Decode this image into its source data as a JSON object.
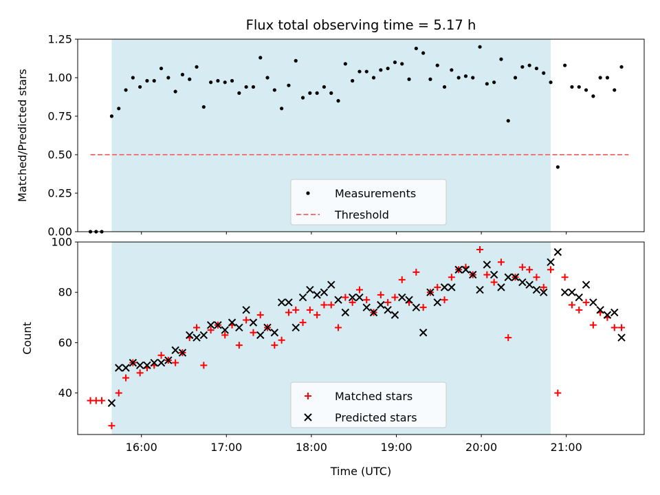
{
  "chart_data": [
    {
      "type": "scatter",
      "title": "Flux total observing time = 5.17 h",
      "xlabel": "",
      "ylabel": "Matched/Predicted stars",
      "xlim": [
        "15:15",
        "21:55"
      ],
      "ylim": [
        0,
        1.25
      ],
      "yticks": [
        "0.00",
        "0.25",
        "0.50",
        "0.75",
        "1.00",
        "1.25"
      ],
      "shaded_region": [
        "15:39",
        "20:49"
      ],
      "threshold": {
        "name": "Threshold",
        "value": 0.5,
        "x": [
          "15:24",
          "21:44"
        ],
        "color": "#f07575"
      },
      "legend": {
        "loc": "lower center",
        "entries": [
          "Measurements",
          "Threshold"
        ]
      },
      "series": [
        {
          "name": "Measurements",
          "marker": "dot",
          "color": "#000000",
          "x": [
            "15:24",
            "15:28",
            "15:32",
            "15:39",
            "15:44",
            "15:49",
            "15:54",
            "15:59",
            "16:04",
            "16:09",
            "16:14",
            "16:19",
            "16:24",
            "16:29",
            "16:34",
            "16:39",
            "16:44",
            "16:49",
            "16:54",
            "16:59",
            "17:04",
            "17:09",
            "17:14",
            "17:19",
            "17:24",
            "17:29",
            "17:34",
            "17:39",
            "17:44",
            "17:49",
            "17:54",
            "17:59",
            "18:04",
            "18:09",
            "18:14",
            "18:19",
            "18:24",
            "18:29",
            "18:34",
            "18:39",
            "18:44",
            "18:49",
            "18:54",
            "18:59",
            "19:04",
            "19:09",
            "19:14",
            "19:19",
            "19:24",
            "19:29",
            "19:34",
            "19:39",
            "19:44",
            "19:49",
            "19:54",
            "19:59",
            "20:04",
            "20:09",
            "20:14",
            "20:19",
            "20:24",
            "20:29",
            "20:34",
            "20:39",
            "20:44",
            "20:49",
            "20:54",
            "20:59",
            "21:04",
            "21:09",
            "21:14",
            "21:19",
            "21:24",
            "21:29",
            "21:34",
            "21:39"
          ],
          "y": [
            0.0,
            0.0,
            0.0,
            0.75,
            0.8,
            0.92,
            1.0,
            0.94,
            0.98,
            0.98,
            1.06,
            1.0,
            0.91,
            1.02,
            0.99,
            1.07,
            0.81,
            0.97,
            0.98,
            0.97,
            0.98,
            0.9,
            0.94,
            0.94,
            1.13,
            1.0,
            0.92,
            0.8,
            0.95,
            1.11,
            0.87,
            0.9,
            0.9,
            0.94,
            0.9,
            0.85,
            1.09,
            0.98,
            1.04,
            1.04,
            1.0,
            1.05,
            1.06,
            1.1,
            1.09,
            0.99,
            1.19,
            1.16,
            0.99,
            1.08,
            0.94,
            1.05,
            1.0,
            1.01,
            1.0,
            1.2,
            0.96,
            0.97,
            1.12,
            0.72,
            1.0,
            1.07,
            1.08,
            1.06,
            1.03,
            0.97,
            0.42,
            1.08,
            0.94,
            0.94,
            0.92,
            0.88,
            1.0,
            1.0,
            0.92,
            1.07
          ]
        }
      ]
    },
    {
      "type": "scatter",
      "title": "",
      "xlabel": "Time (UTC)",
      "ylabel": "Count",
      "xlim": [
        "15:15",
        "21:55"
      ],
      "ylim": [
        23.5,
        100
      ],
      "xticks": [
        "16:00",
        "17:00",
        "18:00",
        "19:00",
        "20:00",
        "21:00"
      ],
      "yticks": [
        "40",
        "60",
        "80",
        "100"
      ],
      "shaded_region": [
        "15:39",
        "20:49"
      ],
      "legend": {
        "loc": "lower center",
        "entries": [
          "Matched stars",
          "Predicted stars"
        ]
      },
      "series": [
        {
          "name": "Matched stars",
          "marker": "plus",
          "color": "#ff0000",
          "x": [
            "15:24",
            "15:28",
            "15:32",
            "15:39",
            "15:44",
            "15:49",
            "15:54",
            "15:59",
            "16:04",
            "16:09",
            "16:14",
            "16:19",
            "16:24",
            "16:29",
            "16:34",
            "16:39",
            "16:44",
            "16:49",
            "16:54",
            "16:59",
            "17:04",
            "17:09",
            "17:14",
            "17:19",
            "17:24",
            "17:29",
            "17:34",
            "17:39",
            "17:44",
            "17:49",
            "17:54",
            "17:59",
            "18:04",
            "18:09",
            "18:14",
            "18:19",
            "18:24",
            "18:29",
            "18:34",
            "18:39",
            "18:44",
            "18:49",
            "18:54",
            "18:59",
            "19:04",
            "19:09",
            "19:14",
            "19:19",
            "19:24",
            "19:29",
            "19:34",
            "19:39",
            "19:44",
            "19:49",
            "19:54",
            "19:59",
            "20:04",
            "20:09",
            "20:14",
            "20:19",
            "20:24",
            "20:29",
            "20:34",
            "20:39",
            "20:44",
            "20:49",
            "20:54",
            "20:59",
            "21:04",
            "21:09",
            "21:14",
            "21:19",
            "21:24",
            "21:29",
            "21:34",
            "21:39"
          ],
          "y": [
            37,
            37,
            37,
            27,
            40,
            46,
            52,
            48,
            50,
            51,
            55,
            53,
            52,
            56,
            62,
            66,
            51,
            65,
            67,
            63,
            67,
            59,
            69,
            64,
            71,
            66,
            59,
            61,
            72,
            73,
            68,
            73,
            71,
            75,
            75,
            66,
            78,
            76,
            81,
            77,
            72,
            79,
            76,
            78,
            85,
            76,
            88,
            74,
            80,
            82,
            77,
            86,
            89,
            90,
            87,
            97,
            87,
            84,
            92,
            62,
            86,
            90,
            89,
            86,
            82,
            89,
            40,
            86,
            75,
            73,
            76,
            67,
            72,
            70,
            66,
            66
          ]
        },
        {
          "name": "Predicted stars",
          "marker": "x",
          "color": "#000000",
          "x": [
            "15:39",
            "15:44",
            "15:49",
            "15:54",
            "15:59",
            "16:04",
            "16:09",
            "16:14",
            "16:19",
            "16:24",
            "16:29",
            "16:34",
            "16:39",
            "16:44",
            "16:49",
            "16:54",
            "16:59",
            "17:04",
            "17:09",
            "17:14",
            "17:19",
            "17:24",
            "17:29",
            "17:34",
            "17:39",
            "17:44",
            "17:49",
            "17:54",
            "17:59",
            "18:04",
            "18:09",
            "18:14",
            "18:19",
            "18:24",
            "18:29",
            "18:34",
            "18:39",
            "18:44",
            "18:49",
            "18:54",
            "18:59",
            "19:04",
            "19:09",
            "19:14",
            "19:19",
            "19:24",
            "19:29",
            "19:34",
            "19:39",
            "19:44",
            "19:49",
            "19:54",
            "19:59",
            "20:04",
            "20:09",
            "20:14",
            "20:19",
            "20:24",
            "20:29",
            "20:34",
            "20:39",
            "20:44",
            "20:49",
            "20:54",
            "20:59",
            "21:04",
            "21:09",
            "21:14",
            "21:19",
            "21:24",
            "21:29",
            "21:34",
            "21:39"
          ],
          "y": [
            36,
            50,
            50,
            52,
            51,
            51,
            52,
            52,
            53,
            57,
            56,
            63,
            62,
            63,
            67,
            67,
            65,
            68,
            66,
            73,
            68,
            63,
            66,
            64,
            76,
            76,
            66,
            78,
            81,
            79,
            80,
            83,
            77,
            72,
            78,
            78,
            74,
            72,
            75,
            73,
            71,
            78,
            77,
            74,
            64,
            80,
            76,
            82,
            82,
            89,
            89,
            87,
            81,
            91,
            87,
            82,
            86,
            86,
            84,
            83,
            81,
            80,
            92,
            96,
            80,
            80,
            78,
            83,
            76,
            73,
            71,
            72,
            62
          ]
        }
      ]
    }
  ]
}
